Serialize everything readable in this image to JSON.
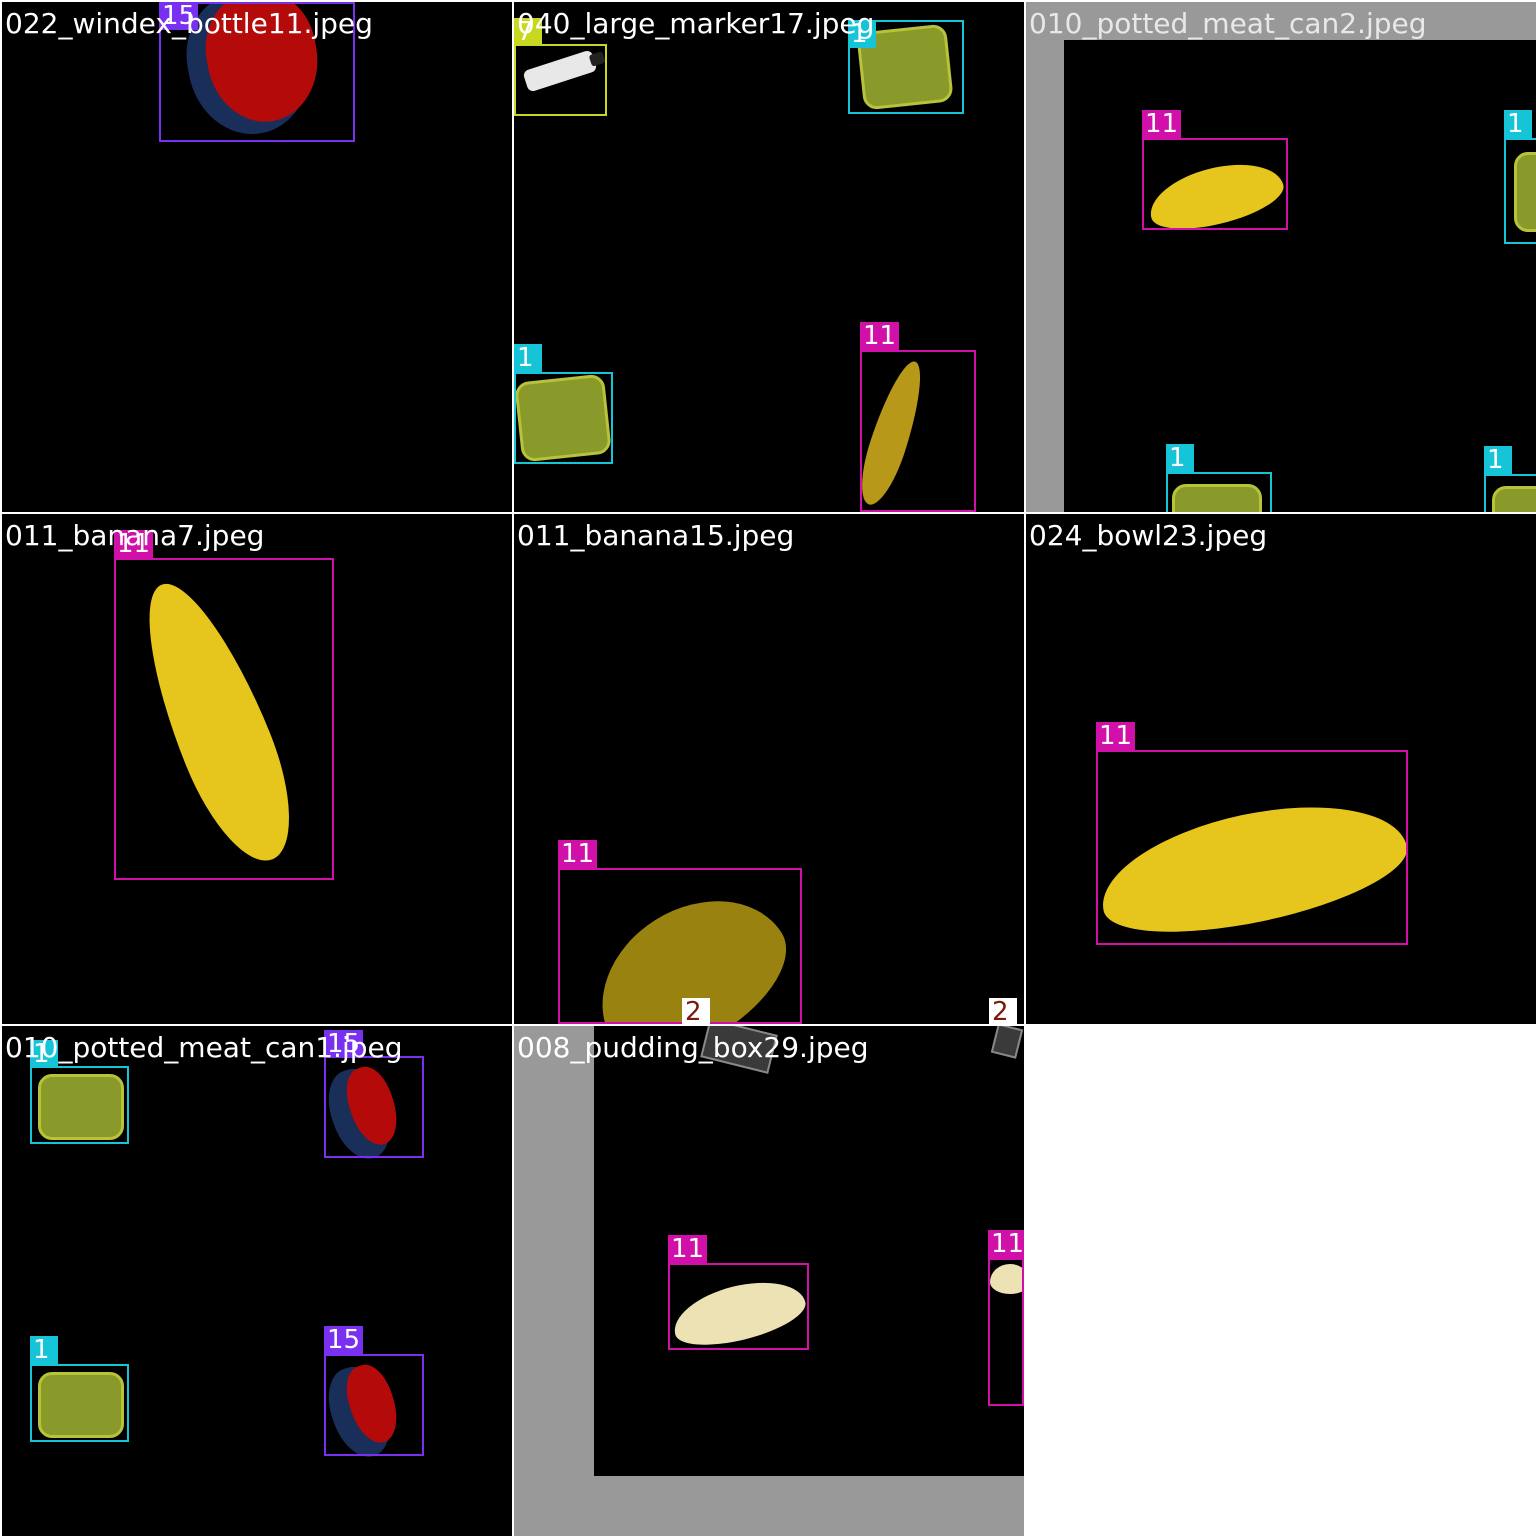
{
  "colors": {
    "class_1": "#16c4d8",
    "class_2": "#ffffff",
    "class_7": "#c8d820",
    "class_11": "#d010a8",
    "class_15": "#7a30f0",
    "title_text": "#ffffff",
    "padding_gray": "#999999"
  },
  "tiles": [
    {
      "title": "022_windex_bottle11.jpeg",
      "labels": [
        "15"
      ]
    },
    {
      "title": "040_large_marker17.jpeg",
      "labels": [
        "7",
        "1",
        "1",
        "11"
      ]
    },
    {
      "title": "010_potted_meat_can2.jpeg",
      "labels": [
        "11",
        "1",
        "1",
        "1"
      ]
    },
    {
      "title": "011_banana7.jpeg",
      "labels": [
        "11"
      ]
    },
    {
      "title": "011_banana15.jpeg",
      "labels": [
        "11",
        "2",
        "2"
      ]
    },
    {
      "title": "024_bowl23.jpeg",
      "labels": [
        "11"
      ]
    },
    {
      "title": "010_potted_meat_can1.jpeg",
      "labels": [
        "1",
        "15",
        "1",
        "15"
      ]
    },
    {
      "title": "008_pudding_box29.jpeg",
      "labels": [
        "11",
        "11"
      ]
    }
  ]
}
